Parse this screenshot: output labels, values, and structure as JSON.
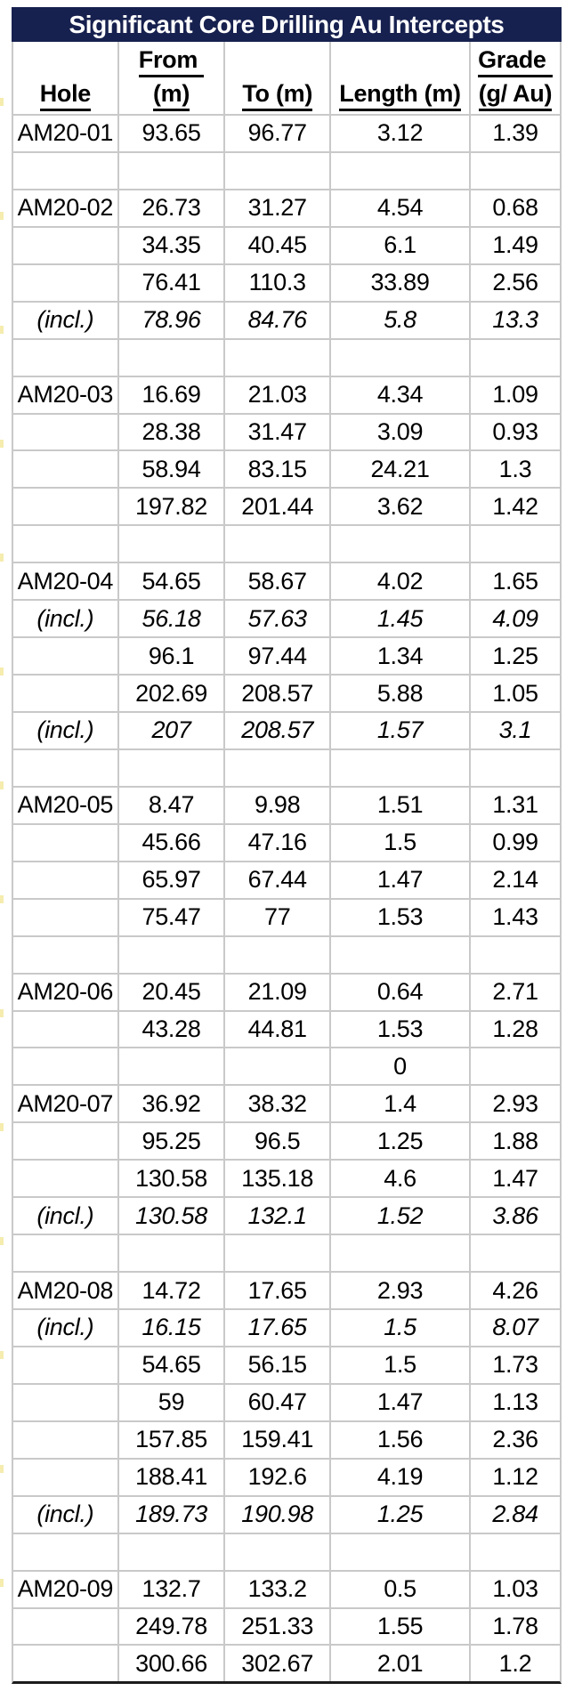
{
  "table": {
    "title": "Significant Core Drilling Au Intercepts",
    "columns": [
      {
        "key": "hole",
        "line1": "",
        "line2": "Hole"
      },
      {
        "key": "from",
        "line1": "From ",
        "line2": "(m)"
      },
      {
        "key": "to",
        "line1": "",
        "line2": "To (m)"
      },
      {
        "key": "length",
        "line1": "",
        "line2": "Length (m)"
      },
      {
        "key": "grade",
        "line1": "Grade ",
        "line2": "(g/ Au)"
      }
    ],
    "rows": [
      {
        "hole": "AM20-01",
        "from": "93.65",
        "to": "96.77",
        "length": "3.12",
        "grade": "1.39",
        "emphasis": "normal"
      },
      {
        "hole": "",
        "from": "",
        "to": "",
        "length": "",
        "grade": "",
        "emphasis": "normal"
      },
      {
        "hole": "AM20-02",
        "from": "26.73",
        "to": "31.27",
        "length": "4.54",
        "grade": "0.68",
        "emphasis": "normal"
      },
      {
        "hole": "",
        "from": "34.35",
        "to": "40.45",
        "length": "6.1",
        "grade": "1.49",
        "emphasis": "normal"
      },
      {
        "hole": "",
        "from": "76.41",
        "to": "110.3",
        "length": "33.89",
        "grade": "2.56",
        "emphasis": "normal"
      },
      {
        "hole": "(incl.)",
        "from": "78.96",
        "to": "84.76",
        "length": "5.8",
        "grade": "13.3",
        "emphasis": "italic"
      },
      {
        "hole": "",
        "from": "",
        "to": "",
        "length": "",
        "grade": "",
        "emphasis": "normal"
      },
      {
        "hole": "AM20-03",
        "from": "16.69",
        "to": "21.03",
        "length": "4.34",
        "grade": "1.09",
        "emphasis": "normal"
      },
      {
        "hole": "",
        "from": "28.38",
        "to": "31.47",
        "length": "3.09",
        "grade": "0.93",
        "emphasis": "normal"
      },
      {
        "hole": "",
        "from": "58.94",
        "to": "83.15",
        "length": "24.21",
        "grade": "1.3",
        "emphasis": "normal"
      },
      {
        "hole": "",
        "from": "197.82",
        "to": "201.44",
        "length": "3.62",
        "grade": "1.42",
        "emphasis": "normal"
      },
      {
        "hole": "",
        "from": "",
        "to": "",
        "length": "",
        "grade": "",
        "emphasis": "normal"
      },
      {
        "hole": "AM20-04",
        "from": "54.65",
        "to": "58.67",
        "length": "4.02",
        "grade": "1.65",
        "emphasis": "normal"
      },
      {
        "hole": "(incl.)",
        "from": "56.18",
        "to": "57.63",
        "length": "1.45",
        "grade": "4.09",
        "emphasis": "italic"
      },
      {
        "hole": "",
        "from": "96.1",
        "to": "97.44",
        "length": "1.34",
        "grade": "1.25",
        "emphasis": "normal"
      },
      {
        "hole": "",
        "from": "202.69",
        "to": "208.57",
        "length": "5.88",
        "grade": "1.05",
        "emphasis": "normal"
      },
      {
        "hole": "(incl.)",
        "from": "207",
        "to": "208.57",
        "length": "1.57",
        "grade": "3.1",
        "emphasis": "italic"
      },
      {
        "hole": "",
        "from": "",
        "to": "",
        "length": "",
        "grade": "",
        "emphasis": "normal"
      },
      {
        "hole": "AM20-05",
        "from": "8.47",
        "to": "9.98",
        "length": "1.51",
        "grade": "1.31",
        "emphasis": "normal"
      },
      {
        "hole": "",
        "from": "45.66",
        "to": "47.16",
        "length": "1.5",
        "grade": "0.99",
        "emphasis": "normal"
      },
      {
        "hole": "",
        "from": "65.97",
        "to": "67.44",
        "length": "1.47",
        "grade": "2.14",
        "emphasis": "normal"
      },
      {
        "hole": "",
        "from": "75.47",
        "to": "77",
        "length": "1.53",
        "grade": "1.43",
        "emphasis": "normal"
      },
      {
        "hole": "",
        "from": "",
        "to": "",
        "length": "",
        "grade": "",
        "emphasis": "normal"
      },
      {
        "hole": "AM20-06",
        "from": "20.45",
        "to": "21.09",
        "length": "0.64",
        "grade": "2.71",
        "emphasis": "normal"
      },
      {
        "hole": "",
        "from": "43.28",
        "to": "44.81",
        "length": "1.53",
        "grade": "1.28",
        "emphasis": "normal"
      },
      {
        "hole": "",
        "from": "",
        "to": "",
        "length": "0",
        "grade": "",
        "emphasis": "normal"
      },
      {
        "hole": "AM20-07",
        "from": "36.92",
        "to": "38.32",
        "length": "1.4",
        "grade": "2.93",
        "emphasis": "normal"
      },
      {
        "hole": "",
        "from": "95.25",
        "to": "96.5",
        "length": "1.25",
        "grade": "1.88",
        "emphasis": "normal"
      },
      {
        "hole": "",
        "from": "130.58",
        "to": "135.18",
        "length": "4.6",
        "grade": "1.47",
        "emphasis": "normal"
      },
      {
        "hole": "(incl.)",
        "from": "130.58",
        "to": "132.1",
        "length": "1.52",
        "grade": "3.86",
        "emphasis": "italic"
      },
      {
        "hole": "",
        "from": "",
        "to": "",
        "length": "",
        "grade": "",
        "emphasis": "normal"
      },
      {
        "hole": "AM20-08",
        "from": "14.72",
        "to": "17.65",
        "length": "2.93",
        "grade": "4.26",
        "emphasis": "normal"
      },
      {
        "hole": "(incl.)",
        "from": "16.15",
        "to": "17.65",
        "length": "1.5",
        "grade": "8.07",
        "emphasis": "italic"
      },
      {
        "hole": "",
        "from": "54.65",
        "to": "56.15",
        "length": "1.5",
        "grade": "1.73",
        "emphasis": "normal"
      },
      {
        "hole": "",
        "from": "59",
        "to": "60.47",
        "length": "1.47",
        "grade": "1.13",
        "emphasis": "normal"
      },
      {
        "hole": "",
        "from": "157.85",
        "to": "159.41",
        "length": "1.56",
        "grade": "2.36",
        "emphasis": "normal"
      },
      {
        "hole": "",
        "from": "188.41",
        "to": "192.6",
        "length": "4.19",
        "grade": "1.12",
        "emphasis": "normal"
      },
      {
        "hole": "(incl.)",
        "from": "189.73",
        "to": "190.98",
        "length": "1.25",
        "grade": "2.84",
        "emphasis": "italic"
      },
      {
        "hole": "",
        "from": "",
        "to": "",
        "length": "",
        "grade": "",
        "emphasis": "normal"
      },
      {
        "hole": "AM20-09",
        "from": "132.7",
        "to": "133.2",
        "length": "0.5",
        "grade": "1.03",
        "emphasis": "normal"
      },
      {
        "hole": "",
        "from": "249.78",
        "to": "251.33",
        "length": "1.55",
        "grade": "1.78",
        "emphasis": "normal"
      },
      {
        "hole": "",
        "from": "300.66",
        "to": "302.67",
        "length": "2.01",
        "grade": "1.2",
        "emphasis": "normal"
      }
    ]
  },
  "colors": {
    "title_bar_bg": "#17214f",
    "title_text": "#ffffff",
    "gridline": "#c9c9c9",
    "body_text": "#000000",
    "bottom_border": "#1c1c1c"
  }
}
